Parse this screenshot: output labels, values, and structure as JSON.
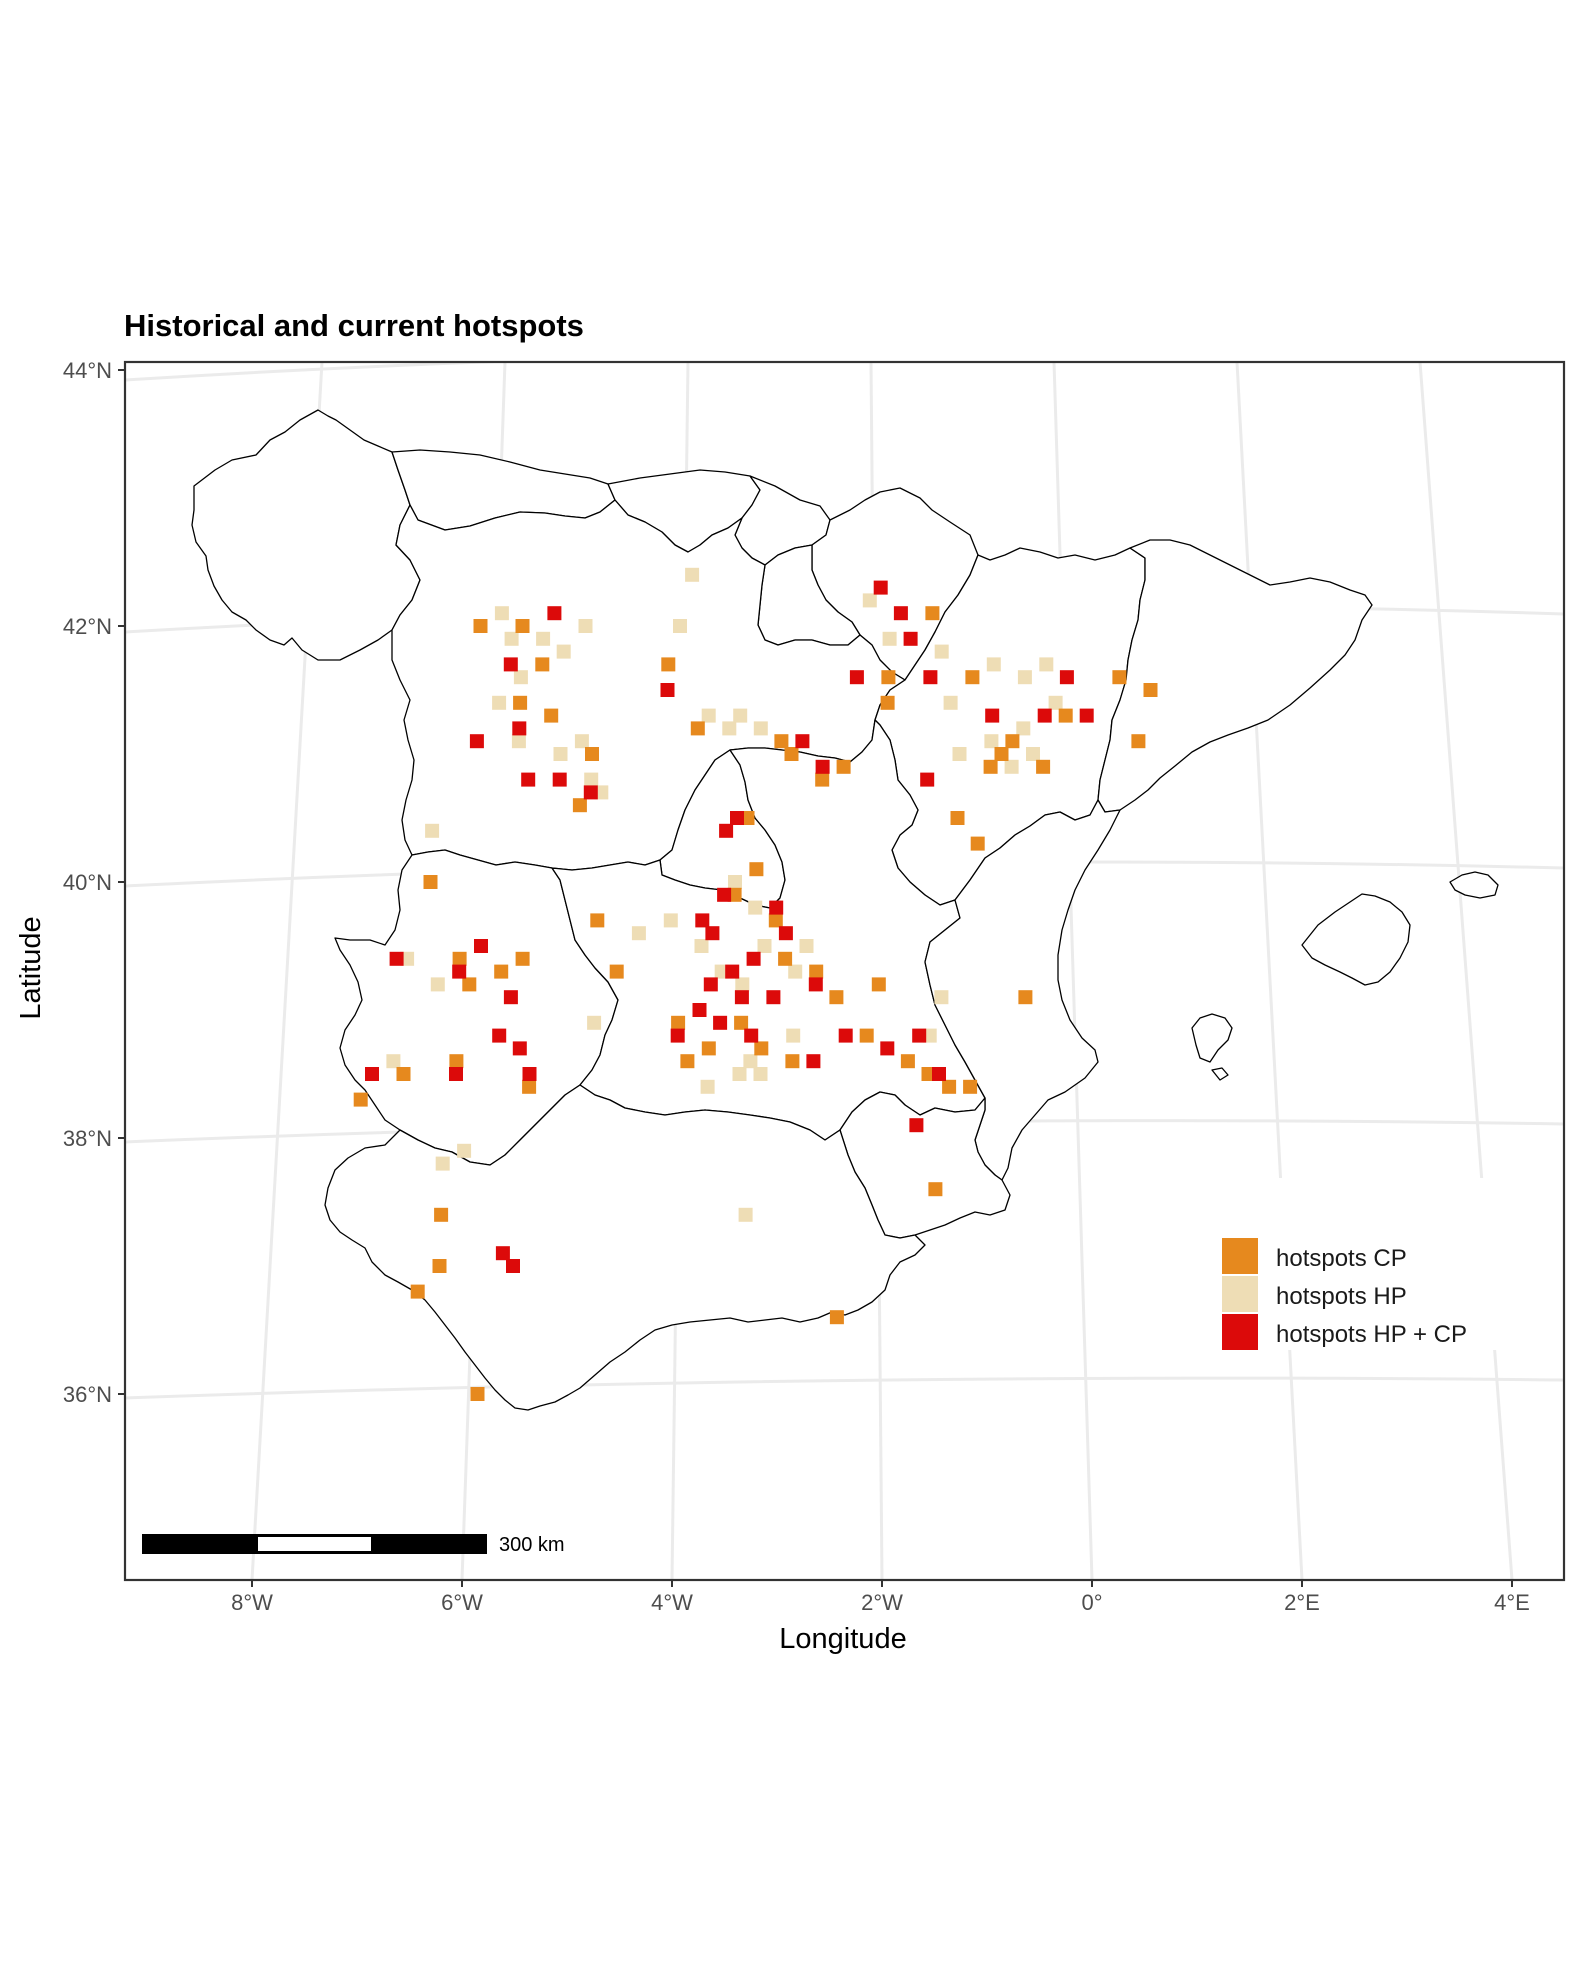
{
  "title": "Historical and current hotspots",
  "x_axis": {
    "label": "Longitude",
    "ticks": [
      "8°W",
      "6°W",
      "4°W",
      "2°W",
      "0°",
      "2°E",
      "4°E"
    ]
  },
  "y_axis": {
    "label": "Latitude",
    "ticks": [
      "44°N",
      "42°N",
      "40°N",
      "38°N",
      "36°N"
    ]
  },
  "legend": {
    "items": [
      {
        "label": "hotspots CP",
        "color": "#E6891E"
      },
      {
        "label": "hotspots HP",
        "color": "#EEDDB5"
      },
      {
        "label": "hotspots HP + CP",
        "color": "#DC0A0A"
      }
    ]
  },
  "scale_bar": {
    "label": "300 km"
  },
  "colors": {
    "CP": "#E6891E",
    "HP": "#EEDDB5",
    "HPCP": "#DC0A0A",
    "panel_border": "#333333",
    "graticule": "#EBEBEB"
  },
  "hotspots": {
    "CP": [
      [
        -5.9,
        42.0
      ],
      [
        -5.5,
        42.0
      ],
      [
        -5.3,
        41.7
      ],
      [
        -5.5,
        41.4
      ],
      [
        -5.2,
        41.3
      ],
      [
        -4.8,
        41.0
      ],
      [
        -4.1,
        41.7
      ],
      [
        -3.8,
        41.2
      ],
      [
        -3.0,
        41.1
      ],
      [
        -2.9,
        41.0
      ],
      [
        -2.4,
        40.9
      ],
      [
        -2.0,
        41.4
      ],
      [
        -2.0,
        41.6
      ],
      [
        -1.6,
        42.1
      ],
      [
        -1.2,
        41.6
      ],
      [
        -0.9,
        41.0
      ],
      [
        -0.8,
        41.1
      ],
      [
        -1.0,
        40.9
      ],
      [
        -0.5,
        40.9
      ],
      [
        -0.3,
        41.3
      ],
      [
        0.2,
        41.6
      ],
      [
        0.5,
        41.5
      ],
      [
        0.4,
        41.1
      ],
      [
        -1.3,
        40.5
      ],
      [
        -1.1,
        40.3
      ],
      [
        -3.3,
        40.5
      ],
      [
        -3.2,
        40.1
      ],
      [
        -3.4,
        39.9
      ],
      [
        -3.0,
        39.7
      ],
      [
        -2.9,
        39.4
      ],
      [
        -2.6,
        39.3
      ],
      [
        -2.4,
        39.1
      ],
      [
        -2.0,
        39.2
      ],
      [
        -2.1,
        38.8
      ],
      [
        -1.7,
        38.6
      ],
      [
        -1.5,
        38.5
      ],
      [
        -1.3,
        38.4
      ],
      [
        -1.1,
        38.4
      ],
      [
        -3.3,
        38.9
      ],
      [
        -3.1,
        38.7
      ],
      [
        -3.6,
        38.7
      ],
      [
        -3.8,
        38.6
      ],
      [
        -3.9,
        38.9
      ],
      [
        -2.8,
        38.6
      ],
      [
        -6.0,
        39.4
      ],
      [
        -5.9,
        39.2
      ],
      [
        -5.6,
        39.3
      ],
      [
        -5.4,
        39.4
      ],
      [
        -6.3,
        40.0
      ],
      [
        -6.0,
        38.6
      ],
      [
        -5.3,
        38.4
      ],
      [
        -6.5,
        38.5
      ],
      [
        -6.9,
        38.3
      ],
      [
        -6.1,
        37.4
      ],
      [
        -6.1,
        37.0
      ],
      [
        -6.3,
        36.8
      ],
      [
        -2.3,
        36.6
      ],
      [
        -5.7,
        36.0
      ],
      [
        -4.5,
        39.3
      ],
      [
        -4.7,
        39.7
      ],
      [
        -0.6,
        39.1
      ],
      [
        -1.4,
        37.6
      ],
      [
        -4.9,
        40.6
      ],
      [
        -2.6,
        40.8
      ]
    ],
    "HP": [
      [
        -5.6,
        41.9
      ],
      [
        -5.7,
        42.1
      ],
      [
        -5.3,
        41.9
      ],
      [
        -5.1,
        41.8
      ],
      [
        -4.9,
        42.0
      ],
      [
        -5.5,
        41.6
      ],
      [
        -5.7,
        41.4
      ],
      [
        -5.5,
        41.1
      ],
      [
        -5.1,
        41.0
      ],
      [
        -4.9,
        41.1
      ],
      [
        -4.8,
        40.8
      ],
      [
        -4.7,
        40.7
      ],
      [
        -4.0,
        42.0
      ],
      [
        -3.9,
        42.4
      ],
      [
        -3.7,
        41.3
      ],
      [
        -3.5,
        41.2
      ],
      [
        -3.4,
        41.3
      ],
      [
        -3.2,
        41.2
      ],
      [
        -2.2,
        42.2
      ],
      [
        -2.0,
        41.9
      ],
      [
        -1.5,
        41.8
      ],
      [
        -1.4,
        41.4
      ],
      [
        -1.0,
        41.7
      ],
      [
        -0.7,
        41.6
      ],
      [
        -0.5,
        41.7
      ],
      [
        -0.4,
        41.4
      ],
      [
        -0.8,
        40.9
      ],
      [
        -1.0,
        41.1
      ],
      [
        -0.7,
        41.2
      ],
      [
        -0.6,
        41.0
      ],
      [
        -3.7,
        39.5
      ],
      [
        -3.5,
        39.3
      ],
      [
        -3.3,
        39.2
      ],
      [
        -3.1,
        39.5
      ],
      [
        -2.8,
        39.3
      ],
      [
        -2.7,
        39.5
      ],
      [
        -4.3,
        39.6
      ],
      [
        -4.0,
        39.7
      ],
      [
        -3.3,
        38.5
      ],
      [
        -3.2,
        38.6
      ],
      [
        -3.1,
        38.5
      ],
      [
        -2.8,
        38.8
      ],
      [
        -3.6,
        38.4
      ],
      [
        -4.7,
        38.9
      ],
      [
        -1.5,
        38.8
      ],
      [
        -1.4,
        39.1
      ],
      [
        -6.5,
        39.4
      ],
      [
        -6.2,
        39.2
      ],
      [
        -6.6,
        38.6
      ],
      [
        -5.9,
        37.9
      ],
      [
        -6.1,
        37.8
      ],
      [
        -3.2,
        37.4
      ],
      [
        -6.3,
        40.4
      ],
      [
        -3.4,
        40.0
      ],
      [
        -3.2,
        39.8
      ],
      [
        -1.3,
        41.0
      ]
    ],
    "HPCP": [
      [
        -5.6,
        41.7
      ],
      [
        -5.2,
        42.1
      ],
      [
        -5.5,
        41.2
      ],
      [
        -5.4,
        40.8
      ],
      [
        -5.1,
        40.8
      ],
      [
        -4.8,
        40.7
      ],
      [
        -5.9,
        41.1
      ],
      [
        -4.1,
        41.5
      ],
      [
        -2.3,
        41.6
      ],
      [
        -2.8,
        41.1
      ],
      [
        -2.6,
        40.9
      ],
      [
        -2.1,
        42.3
      ],
      [
        -1.9,
        42.1
      ],
      [
        -1.8,
        41.9
      ],
      [
        -1.6,
        41.6
      ],
      [
        -1.0,
        41.3
      ],
      [
        -0.5,
        41.3
      ],
      [
        -0.3,
        41.6
      ],
      [
        -0.1,
        41.3
      ],
      [
        -1.6,
        40.8
      ],
      [
        -3.5,
        40.4
      ],
      [
        -3.4,
        40.5
      ],
      [
        -3.5,
        39.9
      ],
      [
        -3.7,
        39.7
      ],
      [
        -3.4,
        39.3
      ],
      [
        -3.3,
        39.1
      ],
      [
        -3.6,
        39.6
      ],
      [
        -3.2,
        39.4
      ],
      [
        -2.9,
        39.6
      ],
      [
        -3.0,
        39.1
      ],
      [
        -2.6,
        39.2
      ],
      [
        -3.7,
        39.0
      ],
      [
        -3.9,
        38.8
      ],
      [
        -3.5,
        38.9
      ],
      [
        -3.2,
        38.8
      ],
      [
        -2.6,
        38.6
      ],
      [
        -2.3,
        38.8
      ],
      [
        -1.9,
        38.7
      ],
      [
        -1.6,
        38.8
      ],
      [
        -1.4,
        38.5
      ],
      [
        -1.6,
        38.1
      ],
      [
        -6.0,
        39.3
      ],
      [
        -5.8,
        39.5
      ],
      [
        -5.5,
        39.1
      ],
      [
        -5.6,
        38.8
      ],
      [
        -5.4,
        38.7
      ],
      [
        -5.3,
        38.5
      ],
      [
        -6.6,
        39.4
      ],
      [
        -6.0,
        38.5
      ],
      [
        -6.8,
        38.5
      ],
      [
        -5.5,
        37.1
      ],
      [
        -5.4,
        37.0
      ],
      [
        -3.0,
        39.8
      ],
      [
        -3.6,
        39.2
      ]
    ]
  }
}
